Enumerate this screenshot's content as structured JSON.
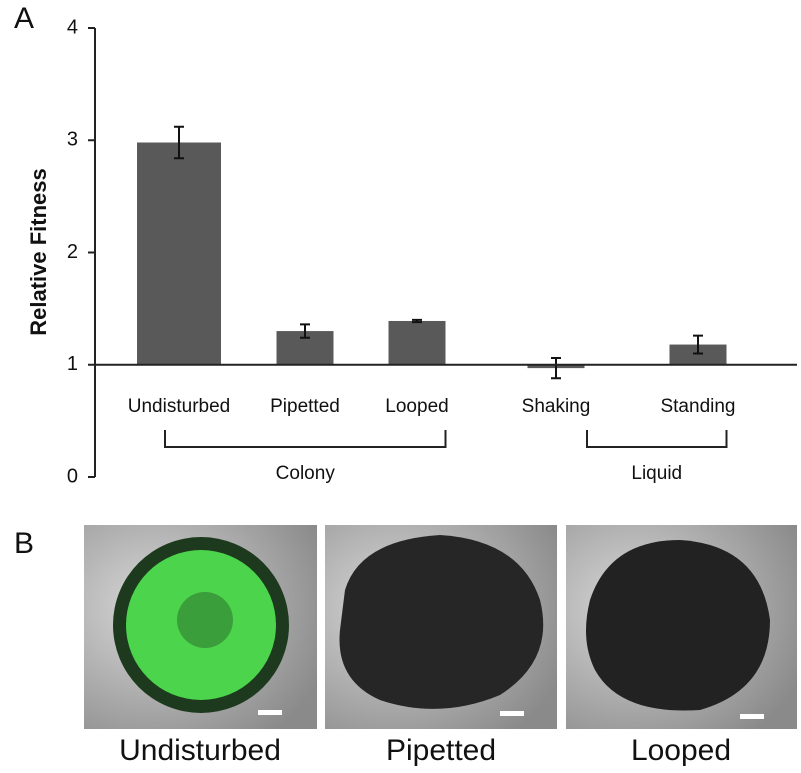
{
  "panel_labels": [
    "A",
    "B"
  ],
  "chart_data": {
    "type": "bar",
    "ylabel": "Relative Fitness",
    "categories": [
      "Undisturbed",
      "Pipetted",
      "Looped",
      "Shaking",
      "Standing"
    ],
    "values": [
      2.98,
      1.3,
      1.39,
      0.97,
      1.18
    ],
    "errors": [
      0.14,
      0.06,
      0.01,
      0.09,
      0.08
    ],
    "color": "#595959",
    "baseline": 1,
    "ylim": [
      0,
      4
    ],
    "yticks": [
      0,
      1,
      2,
      3,
      4
    ],
    "groups": [
      {
        "name": "Colony",
        "members": [
          0,
          1,
          2
        ]
      },
      {
        "name": "Liquid",
        "members": [
          3,
          4
        ]
      }
    ]
  },
  "images": [
    "Undisturbed",
    "Pipetted",
    "Looped"
  ]
}
